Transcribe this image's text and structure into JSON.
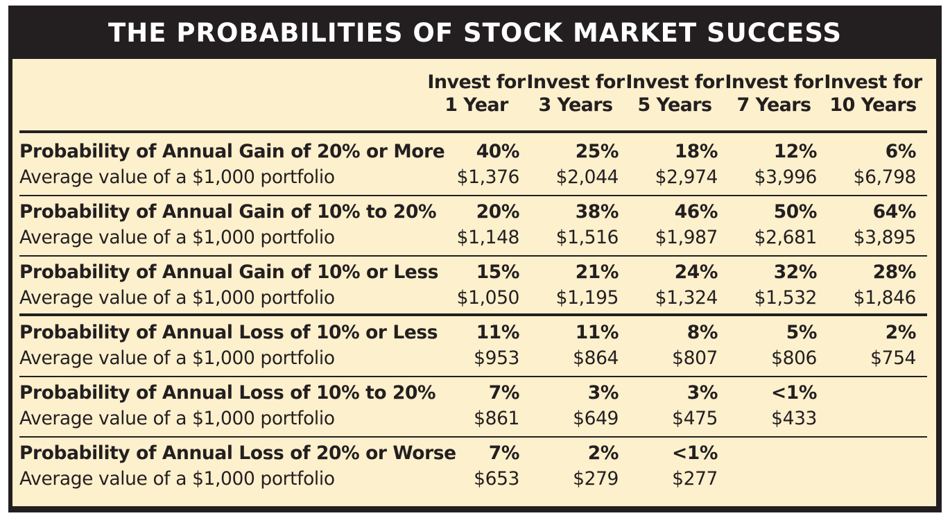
{
  "title": "THE PROBABILITIES OF STOCK MARKET SUCCESS",
  "columns": [
    {
      "line1": "Invest for",
      "line2": "1 Year"
    },
    {
      "line1": "Invest for",
      "line2": "3 Years"
    },
    {
      "line1": "Invest for",
      "line2": "5 Years"
    },
    {
      "line1": "Invest for",
      "line2": "7 Years"
    },
    {
      "line1": "Invest for",
      "line2": "10 Years"
    }
  ],
  "rows": [
    {
      "probability_label": "Probability of Annual Gain of 20% or More",
      "average_label": "Average value of a $1,000 portfolio",
      "probabilities": [
        "40%",
        "25%",
        "18%",
        "12%",
        "6%"
      ],
      "averages": [
        "$1,376",
        "$2,044",
        "$2,974",
        "$3,996",
        "$6,798"
      ]
    },
    {
      "probability_label": "Probability of Annual Gain of 10% to 20%",
      "average_label": "Average value of a $1,000 portfolio",
      "probabilities": [
        "20%",
        "38%",
        "46%",
        "50%",
        "64%"
      ],
      "averages": [
        "$1,148",
        "$1,516",
        "$1,987",
        "$2,681",
        "$3,895"
      ]
    },
    {
      "probability_label": "Probability of Annual Gain of 10% or Less",
      "average_label": "Average value of a $1,000 portfolio",
      "probabilities": [
        "15%",
        "21%",
        "24%",
        "32%",
        "28%"
      ],
      "averages": [
        "$1,050",
        "$1,195",
        "$1,324",
        "$1,532",
        "$1,846"
      ]
    },
    {
      "probability_label": "Probability of Annual Loss of 10% or Less",
      "average_label": "Average value of a $1,000 portfolio",
      "probabilities": [
        "11%",
        "11%",
        "8%",
        "5%",
        "2%"
      ],
      "averages": [
        "$953",
        "$864",
        "$807",
        "$806",
        "$754"
      ]
    },
    {
      "probability_label": "Probability of Annual Loss of 10% to 20%",
      "average_label": "Average value of a $1,000 portfolio",
      "probabilities": [
        "7%",
        "3%",
        "3%",
        "<1%",
        ""
      ],
      "averages": [
        "$861",
        "$649",
        "$475",
        "$433",
        ""
      ]
    },
    {
      "probability_label": "Probability of Annual Loss of 20% or Worse",
      "average_label": "Average value of a $1,000 portfolio",
      "probabilities": [
        "7%",
        "2%",
        "<1%",
        "",
        ""
      ],
      "averages": [
        "$653",
        "$279",
        "$277",
        "",
        ""
      ]
    }
  ],
  "colors": {
    "frame": "#231f20",
    "panel": "#fdf0cd",
    "title_text": "#ffffff",
    "body_text": "#231f20"
  }
}
